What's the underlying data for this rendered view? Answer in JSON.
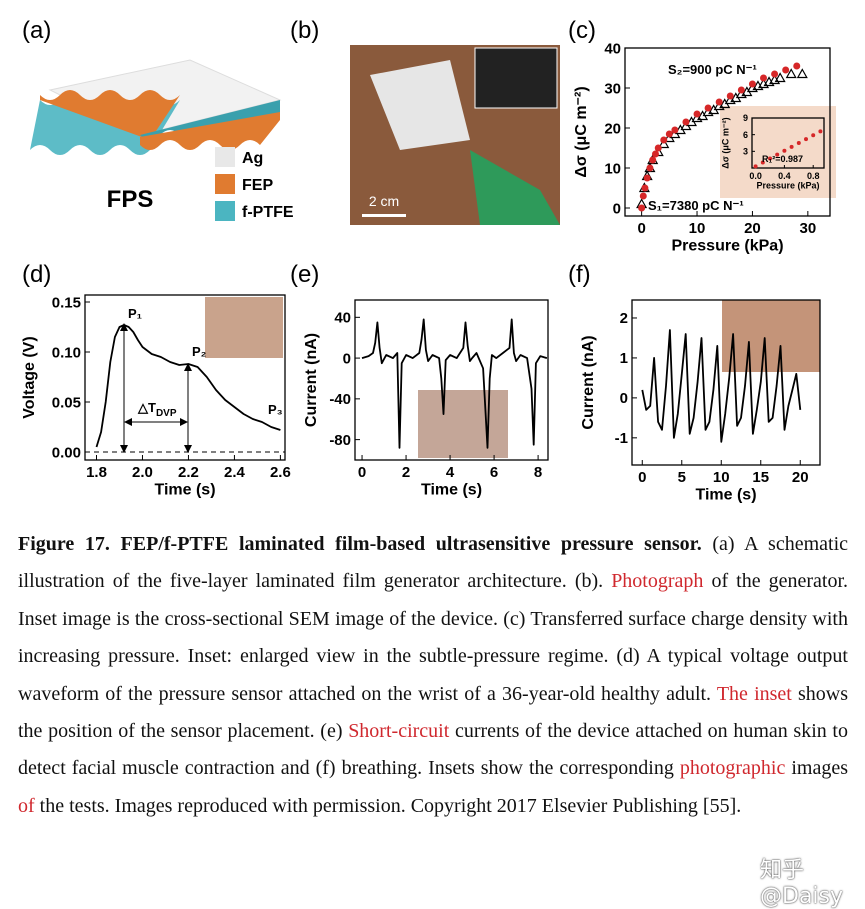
{
  "panel_labels": [
    "(a)",
    "(b)",
    "(c)",
    "(d)",
    "(e)",
    "(f)"
  ],
  "panel_a": {
    "title": "FPS",
    "legend": [
      {
        "name": "Ag",
        "color": "#e8e8e8"
      },
      {
        "name": "FEP",
        "color": "#e07b30"
      },
      {
        "name": "f-PTFE",
        "color": "#4bb5c1"
      }
    ]
  },
  "panel_b": {
    "scale_bar": "2 cm"
  },
  "chart_data": [
    {
      "type": "scatter",
      "xlabel": "Pressure (kPa)",
      "ylabel": "Δσ (μC m⁻²)",
      "xlim": [
        -3,
        34
      ],
      "xticks": [
        0,
        10,
        20,
        30
      ],
      "ylim": [
        -2,
        40
      ],
      "yticks": [
        0,
        10,
        20,
        30,
        40
      ],
      "annotations": [
        {
          "text": "S₂=900 pC N⁻¹"
        },
        {
          "text": "S₁=7380 pC N⁻¹"
        }
      ],
      "series": [
        {
          "marker": "triangle",
          "color": "#000000",
          "x": [
            0,
            0.5,
            1,
            1.5,
            2,
            3,
            4,
            5,
            6,
            7,
            8,
            9,
            10,
            11,
            12,
            13,
            14,
            15,
            16,
            17,
            18,
            19,
            20,
            21,
            22,
            23,
            24,
            25,
            27,
            29
          ],
          "values": [
            1,
            5,
            8,
            10,
            12,
            14,
            16,
            17.5,
            18.5,
            19.5,
            20.5,
            21.5,
            22.5,
            23,
            24,
            24.5,
            25.5,
            26,
            27,
            27.5,
            28.5,
            29,
            30,
            30.5,
            31,
            31.5,
            32,
            32.5,
            33.5,
            33.5
          ]
        },
        {
          "marker": "circle",
          "color": "#d62728",
          "x": [
            0,
            0.3,
            0.6,
            1,
            1.5,
            2,
            2.5,
            3,
            4,
            5,
            6,
            8,
            10,
            12,
            14,
            16,
            18,
            20,
            22,
            24,
            26,
            28
          ],
          "values": [
            0,
            3,
            5,
            7.5,
            10,
            12,
            13.5,
            15,
            17,
            18.5,
            19.5,
            21.5,
            23.5,
            25,
            26.5,
            28,
            29.5,
            31,
            32.5,
            33.5,
            34.5,
            35.5
          ]
        }
      ]
    },
    {
      "type": "scatter",
      "xlabel": "Pressure (kPa)",
      "ylabel": "Δσ (μC m⁻²)",
      "xlim": [
        -0.05,
        0.95
      ],
      "xticks": [
        {
          "value": 0,
          "label": "0.0"
        },
        {
          "value": 0.4,
          "label": "0.4"
        },
        {
          "value": 0.8,
          "label": "0.8"
        }
      ],
      "ylim": [
        0,
        9
      ],
      "yticks": [
        3,
        6,
        9
      ],
      "annotations": [
        {
          "text": "R₁²=0.987"
        }
      ],
      "series": [
        {
          "marker": "circle",
          "color": "#d62728",
          "x": [
            0,
            0.1,
            0.2,
            0.3,
            0.4,
            0.5,
            0.6,
            0.7,
            0.8,
            0.9
          ],
          "values": [
            0.3,
            1,
            1.7,
            2.4,
            3.1,
            3.8,
            4.5,
            5.2,
            5.9,
            6.6
          ]
        }
      ]
    },
    {
      "type": "line",
      "xlabel": "Time (s)",
      "ylabel": "Voltage (V)",
      "xlim": [
        1.75,
        2.62
      ],
      "xticks": [
        {
          "value": 1.8,
          "label": "1.8"
        },
        {
          "value": 2.0,
          "label": "2.0"
        },
        {
          "value": 2.2,
          "label": "2.2"
        },
        {
          "value": 2.4,
          "label": "2.4"
        },
        {
          "value": 2.6,
          "label": "2.6"
        }
      ],
      "ylim": [
        -0.008,
        0.157
      ],
      "yticks": [
        {
          "value": 0,
          "label": "0.00"
        },
        {
          "value": 0.05,
          "label": "0.05"
        },
        {
          "value": 0.1,
          "label": "0.10"
        },
        {
          "value": 0.15,
          "label": "0.15"
        }
      ],
      "annotations": [
        {
          "text": "P₁"
        },
        {
          "text": "P₂"
        },
        {
          "text": "P₃"
        },
        {
          "text": "△T",
          "subscript": "DVP"
        }
      ],
      "series": [
        {
          "color": "#000000",
          "x": [
            1.8,
            1.82,
            1.84,
            1.86,
            1.88,
            1.9,
            1.92,
            1.94,
            1.96,
            1.98,
            2.0,
            2.04,
            2.08,
            2.12,
            2.16,
            2.2,
            2.24,
            2.28,
            2.32,
            2.36,
            2.4,
            2.44,
            2.48,
            2.52,
            2.56,
            2.6
          ],
          "values": [
            0.005,
            0.02,
            0.05,
            0.09,
            0.115,
            0.125,
            0.127,
            0.125,
            0.12,
            0.112,
            0.105,
            0.098,
            0.095,
            0.09,
            0.087,
            0.088,
            0.085,
            0.075,
            0.062,
            0.052,
            0.045,
            0.038,
            0.033,
            0.03,
            0.025,
            0.022
          ]
        }
      ]
    },
    {
      "type": "line",
      "xlabel": "Time (s)",
      "ylabel": "Current (nA)",
      "xlim": [
        -0.32,
        8.45
      ],
      "xticks": [
        0,
        2,
        4,
        6,
        8
      ],
      "ylim": [
        -100,
        57
      ],
      "yticks": [
        40,
        0,
        -40,
        -80
      ],
      "series": [
        {
          "color": "#000000",
          "x": [
            0,
            0.3,
            0.5,
            0.6,
            0.7,
            0.8,
            0.9,
            1.1,
            1.4,
            1.6,
            1.7,
            1.8,
            2.0,
            2.3,
            2.6,
            2.7,
            2.8,
            2.9,
            3.0,
            3.2,
            3.5,
            3.6,
            3.7,
            3.8,
            4.0,
            4.3,
            4.6,
            4.7,
            4.8,
            4.9,
            5.0,
            5.2,
            5.5,
            5.7,
            5.8,
            5.9,
            6.1,
            6.4,
            6.7,
            6.8,
            6.9,
            7.0,
            7.2,
            7.5,
            7.7,
            7.8,
            7.9,
            8.1,
            8.4
          ],
          "values": [
            0,
            2,
            5,
            15,
            35,
            10,
            -5,
            3,
            0,
            5,
            -88,
            -5,
            3,
            0,
            5,
            18,
            38,
            8,
            -3,
            3,
            0,
            -20,
            -55,
            -2,
            3,
            0,
            10,
            35,
            12,
            -3,
            0,
            5,
            -10,
            -88,
            -20,
            3,
            0,
            5,
            10,
            38,
            5,
            -3,
            3,
            0,
            -30,
            -85,
            -5,
            2,
            0
          ]
        }
      ]
    },
    {
      "type": "line",
      "xlabel": "Time (s)",
      "ylabel": "Current (nA)",
      "xlim": [
        -1.3,
        22.5
      ],
      "xticks": [
        0,
        5,
        10,
        15,
        20
      ],
      "ylim": [
        -1.68,
        2.45
      ],
      "yticks": [
        -1,
        0,
        1,
        2
      ],
      "series": [
        {
          "color": "#000000",
          "x": [
            0,
            0.5,
            1,
            1.5,
            2,
            2.5,
            3,
            3.5,
            4,
            4.5,
            5,
            5.5,
            6,
            6.5,
            7,
            7.5,
            8,
            8.5,
            9,
            9.5,
            10,
            10.5,
            11,
            11.5,
            12,
            12.5,
            13,
            13.5,
            14,
            14.5,
            15,
            15.5,
            16,
            16.5,
            17,
            17.5,
            18,
            18.5,
            19,
            19.5,
            20
          ],
          "values": [
            0.2,
            -0.3,
            -0.2,
            1.0,
            -0.6,
            -0.8,
            0.3,
            1.7,
            -1.0,
            -0.4,
            0.6,
            1.6,
            -0.9,
            -0.5,
            0.4,
            1.5,
            -0.8,
            -0.6,
            0.2,
            1.3,
            -1.1,
            -0.4,
            0.5,
            1.6,
            -0.7,
            -0.5,
            0.3,
            1.4,
            -0.9,
            -0.3,
            0.4,
            1.5,
            -0.6,
            -0.5,
            0.3,
            1.3,
            -0.8,
            -0.2,
            0.2,
            0.6,
            -0.3
          ]
        }
      ]
    }
  ],
  "caption": {
    "runs": [
      {
        "text": "Figure 17. FEP/f-PTFE laminated film-based ultrasensitive pressure sensor.",
        "bold": true
      },
      {
        "text": " (a) A schematic illustration of the five-layer laminated film generator architecture. (b). "
      },
      {
        "text": "Photograph",
        "color": "#d0282e"
      },
      {
        "text": " of the generator. Inset image is the cross-sectional SEM image of the device. (c) Transferred surface charge density with increasing pressure. Inset: enlarged view in the subtle-pressure regime. (d) A typical voltage output waveform of the pressure sensor attached on the wrist of a 36-year-old healthy adult. "
      },
      {
        "text": "The inset",
        "color": "#d0282e"
      },
      {
        "text": " shows the position of the sensor placement. (e) "
      },
      {
        "text": "Short-circuit",
        "color": "#d0282e"
      },
      {
        "text": " currents of the device attached on human skin to detect facial muscle contraction and (f) breathing. Insets show the corresponding "
      },
      {
        "text": "photographic",
        "color": "#d0282e"
      },
      {
        "text": " images "
      },
      {
        "text": "of",
        "color": "#d0282e"
      },
      {
        "text": " the tests. Images reproduced with permission. Copyright 2017 Elsevier Publishing [55]."
      }
    ]
  },
  "watermark": "知乎 @Daisy"
}
